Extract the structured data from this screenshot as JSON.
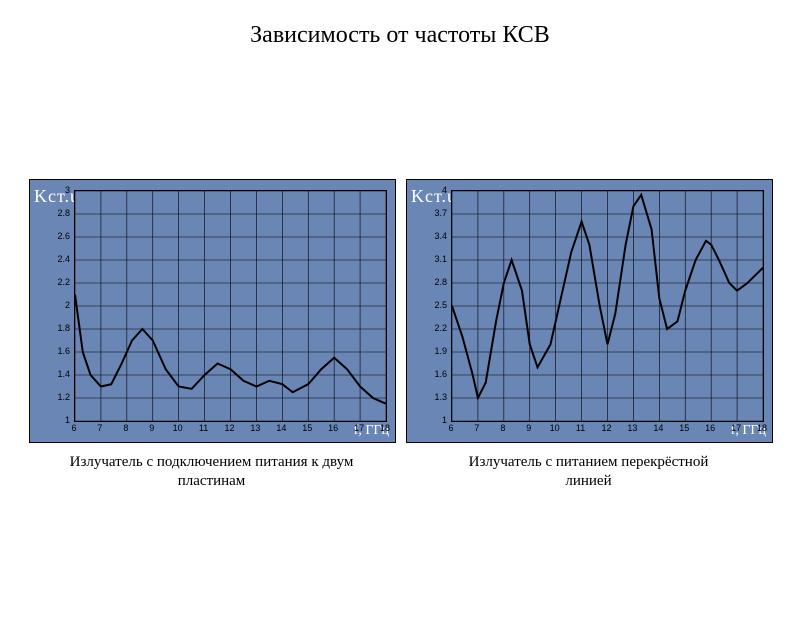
{
  "title": "Зависимость от частоты КСВ",
  "chart_left": {
    "type": "line",
    "caption_l1": "Излучатель с подключением питания к двум",
    "caption_l2": "пластинам",
    "ylabel": "Kст.u",
    "xlabel": "f, ГГц",
    "background_color": "#6a86b5",
    "grid_color": "#000000",
    "line_color": "#000000",
    "line_width": 2,
    "xlim": [
      6,
      18
    ],
    "ylim": [
      1,
      3
    ],
    "xticks": [
      6,
      7,
      8,
      9,
      10,
      11,
      12,
      13,
      14,
      15,
      16,
      17,
      18
    ],
    "yticks": [
      1,
      1.2,
      1.4,
      1.6,
      1.8,
      2,
      2.2,
      2.4,
      2.6,
      2.8,
      3
    ],
    "x": [
      6,
      6.3,
      6.6,
      7,
      7.4,
      7.8,
      8.2,
      8.6,
      9,
      9.5,
      10,
      10.5,
      11,
      11.5,
      12,
      12.5,
      13,
      13.5,
      14,
      14.4,
      15,
      15.5,
      16,
      16.5,
      17,
      17.5,
      18
    ],
    "y": [
      2.1,
      1.6,
      1.4,
      1.3,
      1.32,
      1.5,
      1.7,
      1.8,
      1.7,
      1.45,
      1.3,
      1.28,
      1.4,
      1.5,
      1.45,
      1.35,
      1.3,
      1.35,
      1.32,
      1.25,
      1.32,
      1.45,
      1.55,
      1.45,
      1.3,
      1.2,
      1.15
    ]
  },
  "chart_right": {
    "type": "line",
    "caption_l1": "Излучатель с питанием перекрёстной",
    "caption_l2": "линией",
    "ylabel": "Kст.u",
    "xlabel": "f, ГГц",
    "background_color": "#6a86b5",
    "grid_color": "#000000",
    "line_color": "#000000",
    "line_width": 2,
    "xlim": [
      6,
      18
    ],
    "ylim": [
      1,
      4
    ],
    "xticks": [
      6,
      7,
      8,
      9,
      10,
      11,
      12,
      13,
      14,
      15,
      16,
      17,
      18
    ],
    "yticks": [
      1,
      1.3,
      1.6,
      1.9,
      2.2,
      2.5,
      2.8,
      3.1,
      3.4,
      3.7,
      4
    ],
    "x": [
      6,
      6.4,
      6.8,
      7,
      7.3,
      7.7,
      8,
      8.3,
      8.7,
      9,
      9.3,
      9.8,
      10.2,
      10.6,
      11,
      11.3,
      11.7,
      12,
      12.3,
      12.7,
      13,
      13.3,
      13.7,
      14,
      14.3,
      14.7,
      15,
      15.4,
      15.8,
      16,
      16.3,
      16.7,
      17,
      17.4,
      17.7,
      18
    ],
    "y": [
      2.5,
      2.1,
      1.6,
      1.3,
      1.5,
      2.3,
      2.8,
      3.1,
      2.7,
      2.0,
      1.7,
      2.0,
      2.6,
      3.2,
      3.6,
      3.3,
      2.5,
      2.0,
      2.4,
      3.3,
      3.8,
      3.95,
      3.5,
      2.6,
      2.2,
      2.3,
      2.7,
      3.1,
      3.35,
      3.3,
      3.1,
      2.8,
      2.7,
      2.8,
      2.9,
      3.0
    ]
  }
}
